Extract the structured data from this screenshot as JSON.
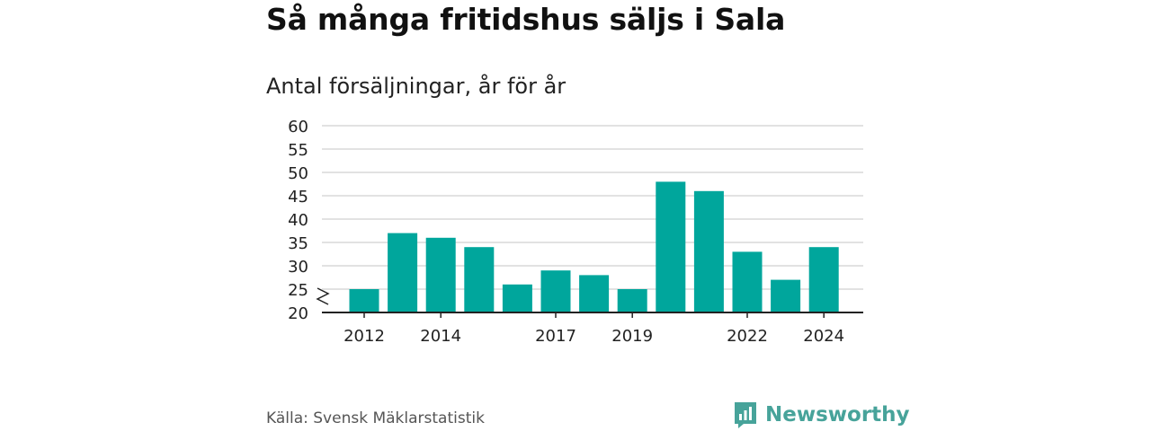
{
  "header": {
    "title": "Så många fritidshus säljs i Sala",
    "subtitle": "Antal försäljningar, år för år"
  },
  "footer": {
    "source": "Källa: Svensk Mäklarstatistik",
    "brand": "Newsworthy"
  },
  "colors": {
    "bar": "#00a69c",
    "grid": "#d9d9d9",
    "axis": "#222222",
    "brand": "#47a39a"
  },
  "chart_data": {
    "type": "bar",
    "categories": [
      "2012",
      "2013",
      "2014",
      "2015",
      "2016",
      "2017",
      "2018",
      "2019",
      "2020",
      "2021",
      "2022",
      "2023",
      "2024"
    ],
    "values": [
      25,
      37,
      36,
      34,
      26,
      29,
      28,
      25,
      48,
      46,
      33,
      27,
      34
    ],
    "x_tick_labels": [
      "2012",
      "2014",
      "2017",
      "2019",
      "2022",
      "2024"
    ],
    "y_ticks": [
      20,
      25,
      30,
      35,
      40,
      45,
      50,
      55,
      60
    ],
    "ylim": [
      20,
      60
    ],
    "axis_break": true,
    "grid": true,
    "legend": "none"
  }
}
